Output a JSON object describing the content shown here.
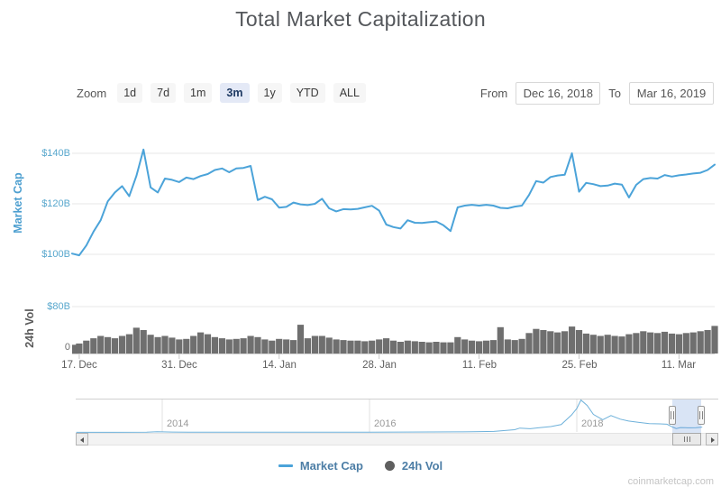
{
  "title": "Total Market Capitalization",
  "toolbar": {
    "zoom_label": "Zoom",
    "zoom_options": [
      "1d",
      "7d",
      "1m",
      "3m",
      "1y",
      "YTD",
      "ALL"
    ],
    "zoom_selected": "3m",
    "from_label": "From",
    "from_value": "Dec 16, 2018",
    "to_label": "To",
    "to_value": "Mar 16, 2019"
  },
  "legend": {
    "items": [
      {
        "label": "Market Cap",
        "marker": "line",
        "color": "#4ba3d9"
      },
      {
        "label": "24h Vol",
        "marker": "circle",
        "color": "#5f5f5f"
      }
    ]
  },
  "watermark": "coinmarketcap.com",
  "chart_data": {
    "type": "line",
    "title": "Total Market Capitalization",
    "x_start": "2018-12-16",
    "x_end": "2019-03-16",
    "x_interval": "daily",
    "xticklabels": [
      "17. Dec",
      "31. Dec",
      "14. Jan",
      "28. Jan",
      "11. Feb",
      "25. Feb",
      "11. Mar"
    ],
    "xtick_days": [
      1,
      15,
      29,
      43,
      57,
      71,
      85
    ],
    "grid": true,
    "legend_position": "bottom",
    "panes": [
      {
        "name": "Market Cap",
        "type": "line",
        "color": "#4ba3d9",
        "ylabel": "Market Cap",
        "unit": "$B",
        "ytick_values": [
          100,
          120,
          140
        ],
        "ytick_labels": [
          "$100B",
          "$120B",
          "$140B"
        ],
        "ylim": [
          96,
          149
        ],
        "values": [
          100.3,
          99.6,
          103.5,
          109.0,
          113.5,
          121.0,
          124.5,
          127.0,
          123.0,
          131.0,
          141.5,
          126.5,
          124.5,
          130.0,
          129.5,
          128.6,
          130.4,
          129.8,
          131.0,
          131.8,
          133.4,
          134.0,
          132.5,
          134.0,
          134.2,
          135.0,
          121.5,
          122.8,
          121.8,
          118.5,
          118.8,
          120.5,
          119.8,
          119.5,
          120.0,
          122.0,
          118.2,
          117.0,
          117.9,
          117.8,
          118.0,
          118.6,
          119.2,
          117.3,
          111.8,
          110.8,
          110.2,
          113.5,
          112.5,
          112.4,
          112.7,
          113.0,
          111.5,
          109.2,
          118.6,
          119.3,
          119.6,
          119.3,
          119.6,
          119.3,
          118.4,
          118.2,
          118.9,
          119.3,
          123.5,
          129.0,
          128.4,
          130.6,
          131.2,
          131.5,
          140.0,
          124.8,
          128.3,
          127.8,
          127.0,
          127.2,
          128.0,
          127.6,
          122.5,
          127.5,
          129.8,
          130.2,
          130.0,
          131.4,
          130.8,
          131.3,
          131.6,
          132.0,
          132.3,
          133.4,
          135.5
        ]
      },
      {
        "name": "24h Vol",
        "type": "column",
        "color": "#6f6f6f",
        "ylabel": "24h Vol",
        "unit": "$B",
        "ytick_values": [
          0,
          80
        ],
        "ytick_labels": [
          "0",
          "$80B"
        ],
        "ylim": [
          0,
          80
        ],
        "values": [
          15,
          17,
          22,
          26,
          30,
          28,
          26,
          30,
          33,
          44,
          40,
          32,
          28,
          30,
          27,
          24,
          25,
          30,
          36,
          33,
          28,
          26,
          24,
          25,
          26,
          30,
          28,
          24,
          22,
          25,
          24,
          23,
          49,
          26,
          30,
          30,
          27,
          24,
          23,
          22,
          22,
          21,
          22,
          24,
          26,
          22,
          20,
          22,
          21,
          20,
          19,
          20,
          19,
          19,
          28,
          24,
          22,
          21,
          22,
          23,
          45,
          24,
          23,
          25,
          35,
          42,
          40,
          38,
          36,
          38,
          46,
          40,
          34,
          32,
          30,
          32,
          30,
          29,
          33,
          35,
          38,
          36,
          35,
          37,
          34,
          33,
          35,
          36,
          38,
          40,
          47
        ]
      }
    ],
    "navigator": {
      "year_labels": [
        "2014",
        "2016",
        "2018"
      ],
      "year_ticks": [
        2014,
        2016,
        2018
      ],
      "selected_from": "Dec 16, 2018",
      "selected_to": "Mar 16, 2019",
      "series": [
        [
          2013.17,
          1.2
        ],
        [
          2013.5,
          1.4
        ],
        [
          2013.85,
          7
        ],
        [
          2013.95,
          15
        ],
        [
          2014.0,
          13
        ],
        [
          2014.1,
          9
        ],
        [
          2014.25,
          8
        ],
        [
          2014.5,
          7.5
        ],
        [
          2014.75,
          6
        ],
        [
          2015.0,
          5
        ],
        [
          2015.3,
          4
        ],
        [
          2015.6,
          4.5
        ],
        [
          2015.9,
          6
        ],
        [
          2016.0,
          7
        ],
        [
          2016.3,
          10
        ],
        [
          2016.6,
          12
        ],
        [
          2016.9,
          14
        ],
        [
          2017.0,
          18
        ],
        [
          2017.2,
          25
        ],
        [
          2017.4,
          70
        ],
        [
          2017.45,
          110
        ],
        [
          2017.55,
          95
        ],
        [
          2017.65,
          125
        ],
        [
          2017.75,
          150
        ],
        [
          2017.85,
          200
        ],
        [
          2017.95,
          450
        ],
        [
          2018.0,
          610
        ],
        [
          2018.04,
          828
        ],
        [
          2018.1,
          690
        ],
        [
          2018.16,
          460
        ],
        [
          2018.25,
          325
        ],
        [
          2018.33,
          430
        ],
        [
          2018.42,
          340
        ],
        [
          2018.5,
          290
        ],
        [
          2018.6,
          255
        ],
        [
          2018.7,
          225
        ],
        [
          2018.8,
          220
        ],
        [
          2018.87,
          210
        ],
        [
          2018.93,
          130
        ],
        [
          2018.96,
          100
        ],
        [
          2019.0,
          125
        ],
        [
          2019.05,
          120
        ],
        [
          2019.1,
          118
        ],
        [
          2019.15,
          122
        ],
        [
          2019.21,
          135
        ]
      ]
    }
  }
}
